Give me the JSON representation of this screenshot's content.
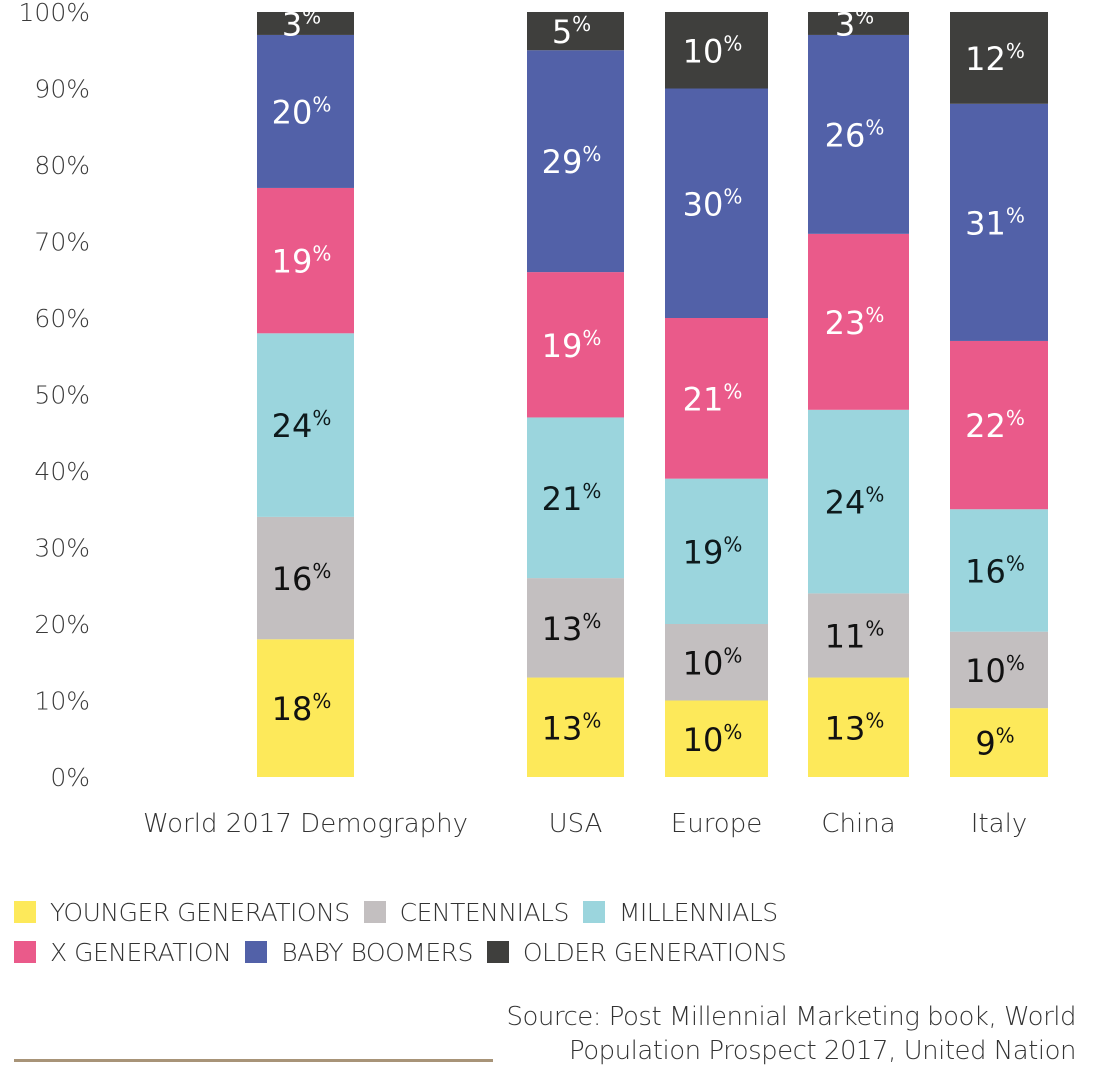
{
  "chart_data": {
    "type": "bar",
    "stacked": true,
    "title": "",
    "xlabel": "",
    "ylabel": "",
    "ylim": [
      0,
      100
    ],
    "y_ticks": [
      "0%",
      "10%",
      "20%",
      "30%",
      "40%",
      "50%",
      "60%",
      "70%",
      "80%",
      "90%",
      "100%"
    ],
    "y_tick_values": [
      0,
      10,
      20,
      30,
      40,
      50,
      60,
      70,
      80,
      90,
      100
    ],
    "grid": false,
    "categories": [
      "World 2017 Demography",
      "USA",
      "Europe",
      "China",
      "Italy"
    ],
    "series": [
      {
        "name": "YOUNGER GENERATIONS",
        "color": "#fde95a",
        "label_color": "#111111",
        "values": [
          18,
          13,
          10,
          13,
          9
        ]
      },
      {
        "name": "CENTENNIALS",
        "color": "#c3bfc0",
        "label_color": "#111111",
        "values": [
          16,
          13,
          10,
          11,
          10
        ]
      },
      {
        "name": "MILLENNIALS",
        "color": "#9bd5dd",
        "label_color": "#0e1a1c",
        "values": [
          24,
          21,
          19,
          24,
          16
        ]
      },
      {
        "name": "X GENERATION",
        "color": "#ea5a8a",
        "label_color": "#ffffff",
        "values": [
          19,
          19,
          21,
          23,
          22
        ]
      },
      {
        "name": "BABY BOOMERS",
        "color": "#5261a8",
        "label_color": "#ffffff",
        "values": [
          20,
          29,
          30,
          26,
          31
        ]
      },
      {
        "name": "OLDER GENERATIONS",
        "color": "#3f3f3d",
        "label_color": "#ffffff",
        "values": [
          3,
          5,
          10,
          3,
          12
        ]
      }
    ],
    "value_suffix": "%",
    "legend_position": "bottom-left"
  },
  "legend": {
    "rows": [
      [
        {
          "label": "YOUNGER GENERATIONS",
          "color": "#fde95a"
        },
        {
          "label": "CENTENNIALS",
          "color": "#c3bfc0"
        },
        {
          "label": "MILLENNIALS",
          "color": "#9bd5dd"
        }
      ],
      [
        {
          "label": "X GENERATION",
          "color": "#ea5a8a"
        },
        {
          "label": "BABY BOOMERS",
          "color": "#5261a8"
        },
        {
          "label": "OLDER GENERATIONS",
          "color": "#3f3f3d"
        }
      ]
    ]
  },
  "source": {
    "line1": "Source: Post Millennial Marketing book, World",
    "line2": "Population Prospect 2017, United Nation"
  },
  "colors": {
    "rule": "#a89478"
  }
}
